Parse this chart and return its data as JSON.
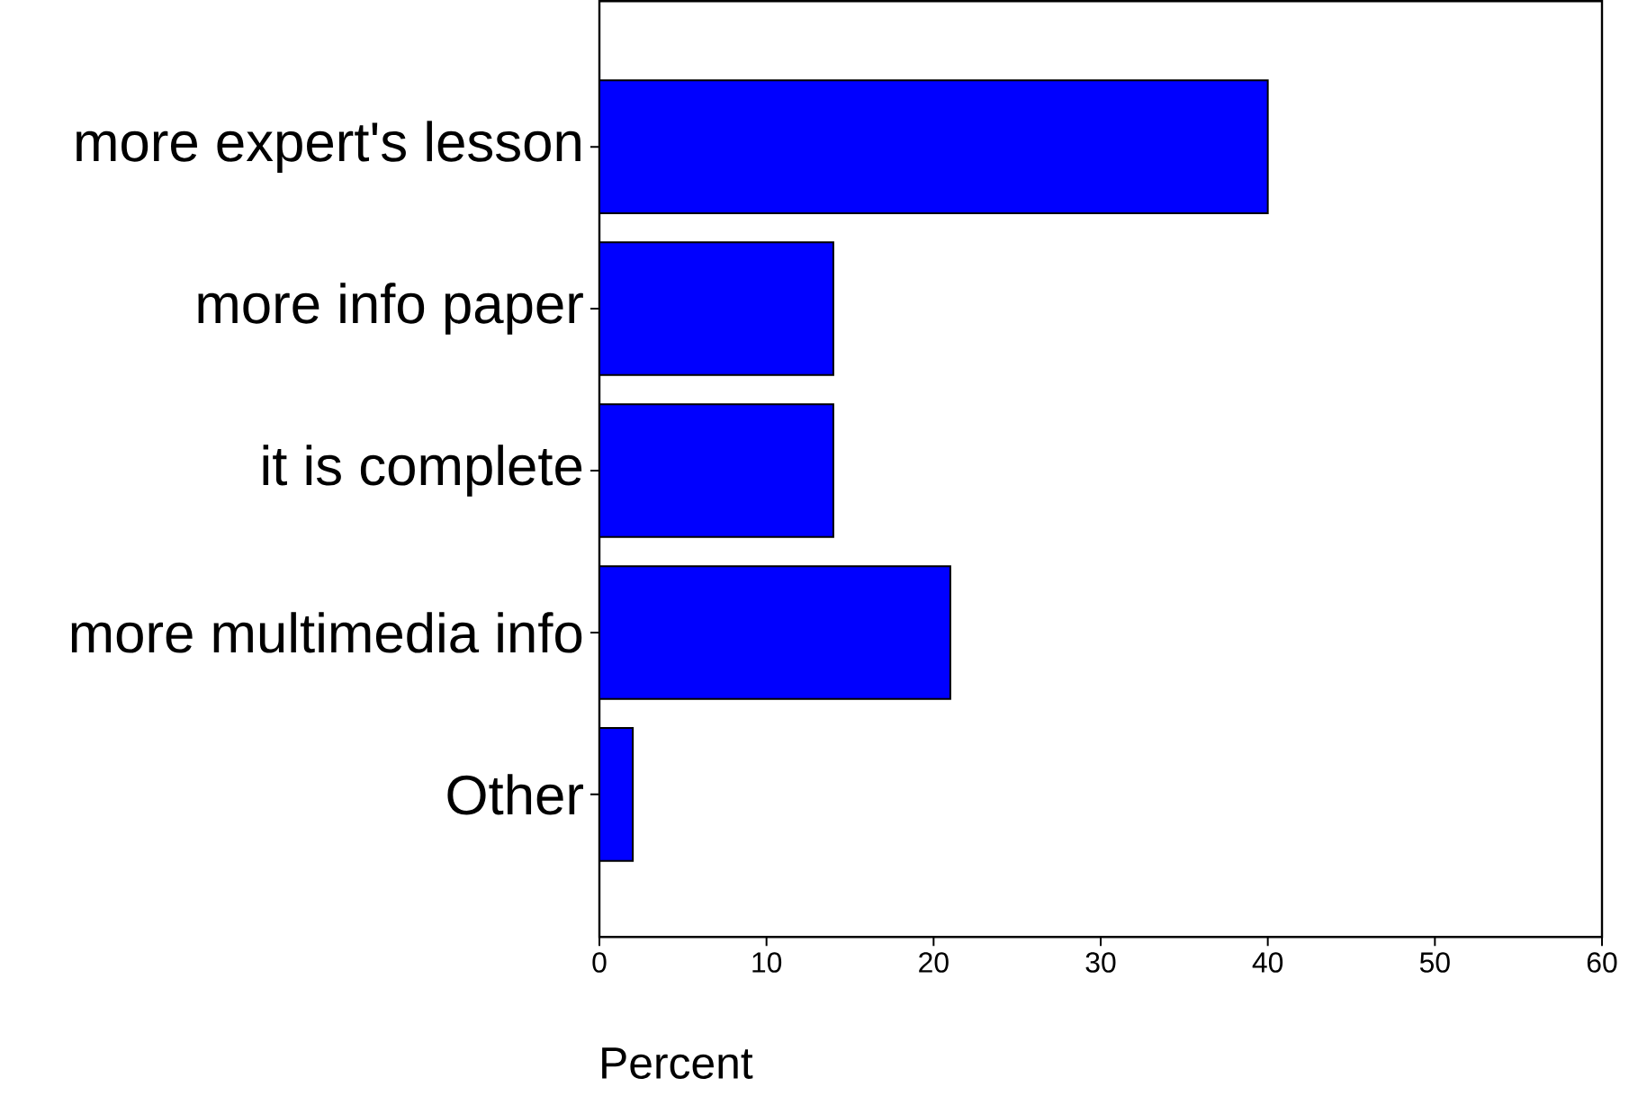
{
  "chart_data": {
    "type": "bar",
    "orientation": "horizontal",
    "xlabel": "Percent",
    "categories": [
      "more expert's lesson",
      "more info paper",
      "it is complete",
      "more multimedia info",
      "Other"
    ],
    "values": [
      40,
      14,
      14,
      21,
      2
    ],
    "color": "#0000ff",
    "xlim": [
      0,
      60
    ],
    "xticks": [
      0,
      10,
      20,
      30,
      40,
      50,
      60
    ]
  }
}
